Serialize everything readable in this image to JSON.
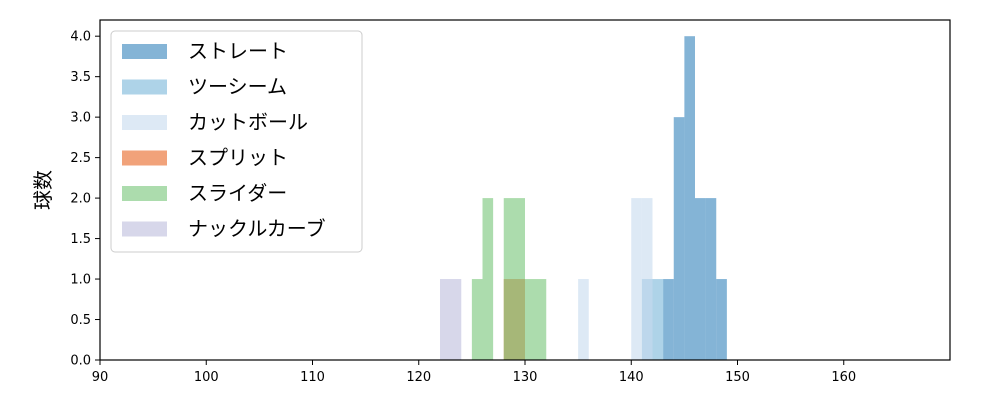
{
  "chart_data": {
    "type": "bar",
    "title": "",
    "xlabel": "",
    "ylabel": "球数",
    "xlim": [
      90,
      170
    ],
    "ylim": [
      0,
      4.2
    ],
    "xticks": [
      "90",
      "100",
      "110",
      "120",
      "130",
      "140",
      "150",
      "160"
    ],
    "yticks": [
      "0.0",
      "0.5",
      "1.0",
      "1.5",
      "2.0",
      "2.5",
      "3.0",
      "3.5",
      "4.0"
    ],
    "grid": false,
    "legend_position": "top-left",
    "series": [
      {
        "name": "ストレート",
        "color": "#1f77b4",
        "opacity": 0.55,
        "bins": [
          {
            "x0": 143,
            "x1": 144,
            "count": 1
          },
          {
            "x0": 144,
            "x1": 145,
            "count": 3
          },
          {
            "x0": 145,
            "x1": 146,
            "count": 4
          },
          {
            "x0": 146,
            "x1": 147,
            "count": 2
          },
          {
            "x0": 147,
            "x1": 148,
            "count": 2
          },
          {
            "x0": 148,
            "x1": 149,
            "count": 1
          }
        ]
      },
      {
        "name": "ツーシーム",
        "color": "#6baed6",
        "opacity": 0.55,
        "bins": [
          {
            "x0": 141,
            "x1": 142,
            "count": 1
          },
          {
            "x0": 142,
            "x1": 143,
            "count": 1
          }
        ]
      },
      {
        "name": "カットボール",
        "color": "#c6dbef",
        "opacity": 0.6,
        "bins": [
          {
            "x0": 135,
            "x1": 136,
            "count": 1
          },
          {
            "x0": 140,
            "x1": 141,
            "count": 2
          },
          {
            "x0": 141,
            "x1": 142,
            "count": 2
          }
        ]
      },
      {
        "name": "スプリット",
        "color": "#e6550d",
        "opacity": 0.55,
        "bins": [
          {
            "x0": 128,
            "x1": 130,
            "count": 1
          }
        ]
      },
      {
        "name": "スライダー",
        "color": "#74c476",
        "opacity": 0.6,
        "bins": [
          {
            "x0": 125,
            "x1": 126,
            "count": 1
          },
          {
            "x0": 126,
            "x1": 127,
            "count": 2
          },
          {
            "x0": 128,
            "x1": 130,
            "count": 2
          },
          {
            "x0": 130,
            "x1": 132,
            "count": 1
          }
        ]
      },
      {
        "name": "ナックルカーブ",
        "color": "#bcbddc",
        "opacity": 0.6,
        "bins": [
          {
            "x0": 122,
            "x1": 124,
            "count": 1
          }
        ]
      }
    ]
  }
}
